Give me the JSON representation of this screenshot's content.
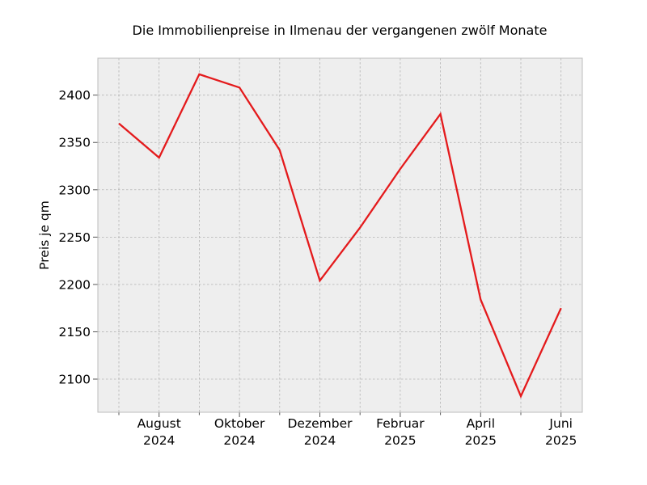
{
  "chart_data": {
    "type": "line",
    "title": "Die Immobilienpreise in Ilmenau der vergangenen zwölf Monate",
    "xlabel": "",
    "ylabel": "Preis je qm",
    "x": [
      "2024-07",
      "2024-08",
      "2024-09",
      "2024-10",
      "2024-11",
      "2024-12",
      "2025-01",
      "2025-02",
      "2025-03",
      "2025-04",
      "2025-05",
      "2025-06"
    ],
    "series": [
      {
        "values": [
          2370,
          2334,
          2422,
          2408,
          2342,
          2204,
          2260,
          2322,
          2380,
          2184,
          2082,
          2175
        ]
      }
    ],
    "x_tick_labels": [
      {
        "x": "2024-08",
        "lines": [
          "August",
          "2024"
        ]
      },
      {
        "x": "2024-10",
        "lines": [
          "Oktober",
          "2024"
        ]
      },
      {
        "x": "2024-12",
        "lines": [
          "Dezember",
          "2024"
        ]
      },
      {
        "x": "2025-02",
        "lines": [
          "Februar",
          "2025"
        ]
      },
      {
        "x": "2025-04",
        "lines": [
          "April",
          "2025"
        ]
      },
      {
        "x": "2025-06",
        "lines": [
          "Juni",
          "2025"
        ]
      }
    ],
    "y_ticks": [
      2100,
      2150,
      2200,
      2250,
      2300,
      2350,
      2400
    ],
    "ylim": [
      2065,
      2439
    ],
    "grid": true,
    "colors": {
      "line": "#e41a1c",
      "background": "#eeeeee",
      "grid": "#b2b2b2",
      "frame": "#bcbcbc"
    }
  }
}
